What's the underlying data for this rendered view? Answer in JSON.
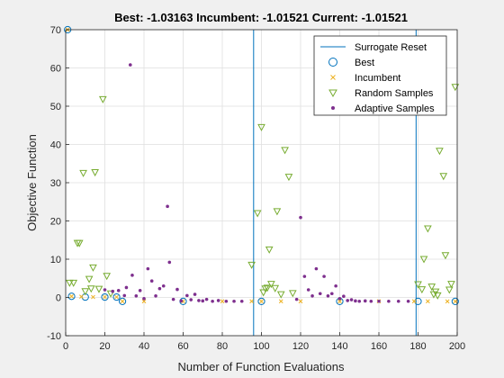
{
  "chart_data": {
    "type": "scatter",
    "title": "Best: -1.03163 Incumbent: -1.01521 Current: -1.01521",
    "xlabel": "Number of Function Evaluations",
    "ylabel": "Objective Function",
    "xlim": [
      0,
      200
    ],
    "ylim": [
      -10,
      70
    ],
    "xticks": [
      0,
      20,
      40,
      60,
      80,
      100,
      120,
      140,
      160,
      180,
      200
    ],
    "yticks": [
      -10,
      0,
      10,
      20,
      30,
      40,
      50,
      60,
      70
    ],
    "grid": true,
    "legend_position": "top-right",
    "legend": [
      "Surrogate Reset",
      "Best",
      "Incumbent",
      "Random Samples",
      "Adaptive Samples"
    ],
    "colors": {
      "surrogate_reset": "#0072bd",
      "best": "#0072bd",
      "incumbent": "#edb120",
      "random": "#77ac30",
      "adaptive": "#7e2f8e"
    },
    "surrogate_resets": [
      96,
      179
    ],
    "series": [
      {
        "name": "Best",
        "marker": "circle",
        "points": [
          [
            1,
            70
          ],
          [
            3,
            0.3
          ],
          [
            10,
            0.1
          ],
          [
            20,
            0.1
          ],
          [
            26,
            0.1
          ],
          [
            29,
            -1.03
          ],
          [
            60,
            -1.03
          ],
          [
            100,
            -1.03
          ],
          [
            140,
            -1.03
          ],
          [
            180,
            -1.03
          ],
          [
            199,
            -1.03
          ]
        ]
      },
      {
        "name": "Incumbent",
        "marker": "x",
        "points": [
          [
            1,
            70
          ],
          [
            3,
            0.3
          ],
          [
            8,
            0.2
          ],
          [
            14,
            0.1
          ],
          [
            20,
            0.1
          ],
          [
            26,
            0.1
          ],
          [
            29,
            -1.0
          ],
          [
            40,
            -1.0
          ],
          [
            60,
            -1.0
          ],
          [
            80,
            -1.0
          ],
          [
            95,
            -1.0
          ],
          [
            100,
            -1.0
          ],
          [
            110,
            -1.0
          ],
          [
            120,
            -1.0
          ],
          [
            140,
            -1.0
          ],
          [
            160,
            -1.0
          ],
          [
            178,
            -1.0
          ],
          [
            185,
            -1.0
          ],
          [
            195,
            -1.02
          ],
          [
            199,
            -1.02
          ]
        ]
      },
      {
        "name": "Random Samples",
        "marker": "triangle-down",
        "points": [
          [
            2,
            3.8
          ],
          [
            4,
            3.8
          ],
          [
            6,
            14.2
          ],
          [
            7,
            14.2
          ],
          [
            9,
            32.5
          ],
          [
            10,
            1.6
          ],
          [
            12,
            4.8
          ],
          [
            13,
            2.3
          ],
          [
            14,
            7.8
          ],
          [
            15,
            32.7
          ],
          [
            17,
            2.2
          ],
          [
            19,
            51.8
          ],
          [
            21,
            5.6
          ],
          [
            23,
            1.0
          ],
          [
            95,
            8.5
          ],
          [
            98,
            22.0
          ],
          [
            100,
            44.5
          ],
          [
            101,
            1.3
          ],
          [
            102,
            2.3
          ],
          [
            103,
            2.5
          ],
          [
            104,
            12.5
          ],
          [
            105,
            3.5
          ],
          [
            107,
            2.4
          ],
          [
            108,
            22.5
          ],
          [
            110,
            0.8
          ],
          [
            112,
            38.5
          ],
          [
            114,
            31.5
          ],
          [
            116,
            1.1
          ],
          [
            180,
            3.4
          ],
          [
            182,
            2.1
          ],
          [
            183,
            10.0
          ],
          [
            185,
            18.0
          ],
          [
            187,
            2.8
          ],
          [
            188,
            0.8
          ],
          [
            189,
            1.5
          ],
          [
            190,
            0.5
          ],
          [
            191,
            38.3
          ],
          [
            193,
            31.7
          ],
          [
            194,
            11.0
          ],
          [
            196,
            2.0
          ],
          [
            197,
            3.5
          ],
          [
            199,
            55.0
          ]
        ]
      },
      {
        "name": "Adaptive Samples",
        "marker": "dot",
        "points": [
          [
            20,
            2.0
          ],
          [
            24,
            1.6
          ],
          [
            27,
            1.8
          ],
          [
            30,
            0.5
          ],
          [
            31,
            2.6
          ],
          [
            33,
            60.8
          ],
          [
            34,
            5.8
          ],
          [
            36,
            0.4
          ],
          [
            38,
            1.8
          ],
          [
            40,
            -0.3
          ],
          [
            42,
            7.5
          ],
          [
            44,
            4.3
          ],
          [
            46,
            0.4
          ],
          [
            48,
            2.3
          ],
          [
            50,
            3.0
          ],
          [
            52,
            23.8
          ],
          [
            53,
            9.2
          ],
          [
            55,
            -0.5
          ],
          [
            57,
            2.1
          ],
          [
            59,
            -0.9
          ],
          [
            62,
            0.5
          ],
          [
            64,
            -0.6
          ],
          [
            66,
            0.8
          ],
          [
            68,
            -0.8
          ],
          [
            70,
            -0.9
          ],
          [
            72,
            -0.5
          ],
          [
            75,
            -1.0
          ],
          [
            78,
            -0.8
          ],
          [
            82,
            -1.0
          ],
          [
            86,
            -1.0
          ],
          [
            90,
            -1.0
          ],
          [
            118,
            -0.5
          ],
          [
            120,
            20.9
          ],
          [
            122,
            5.5
          ],
          [
            124,
            2.0
          ],
          [
            126,
            0.4
          ],
          [
            128,
            7.5
          ],
          [
            130,
            1.0
          ],
          [
            132,
            5.5
          ],
          [
            134,
            0.4
          ],
          [
            136,
            1.0
          ],
          [
            138,
            3.0
          ],
          [
            140,
            -0.3
          ],
          [
            142,
            0.3
          ],
          [
            144,
            -0.8
          ],
          [
            146,
            -0.6
          ],
          [
            148,
            -0.9
          ],
          [
            150,
            -1.0
          ],
          [
            153,
            -0.9
          ],
          [
            156,
            -1.0
          ],
          [
            160,
            -1.0
          ],
          [
            165,
            -1.0
          ],
          [
            170,
            -1.0
          ],
          [
            175,
            -1.0
          ]
        ]
      }
    ]
  }
}
